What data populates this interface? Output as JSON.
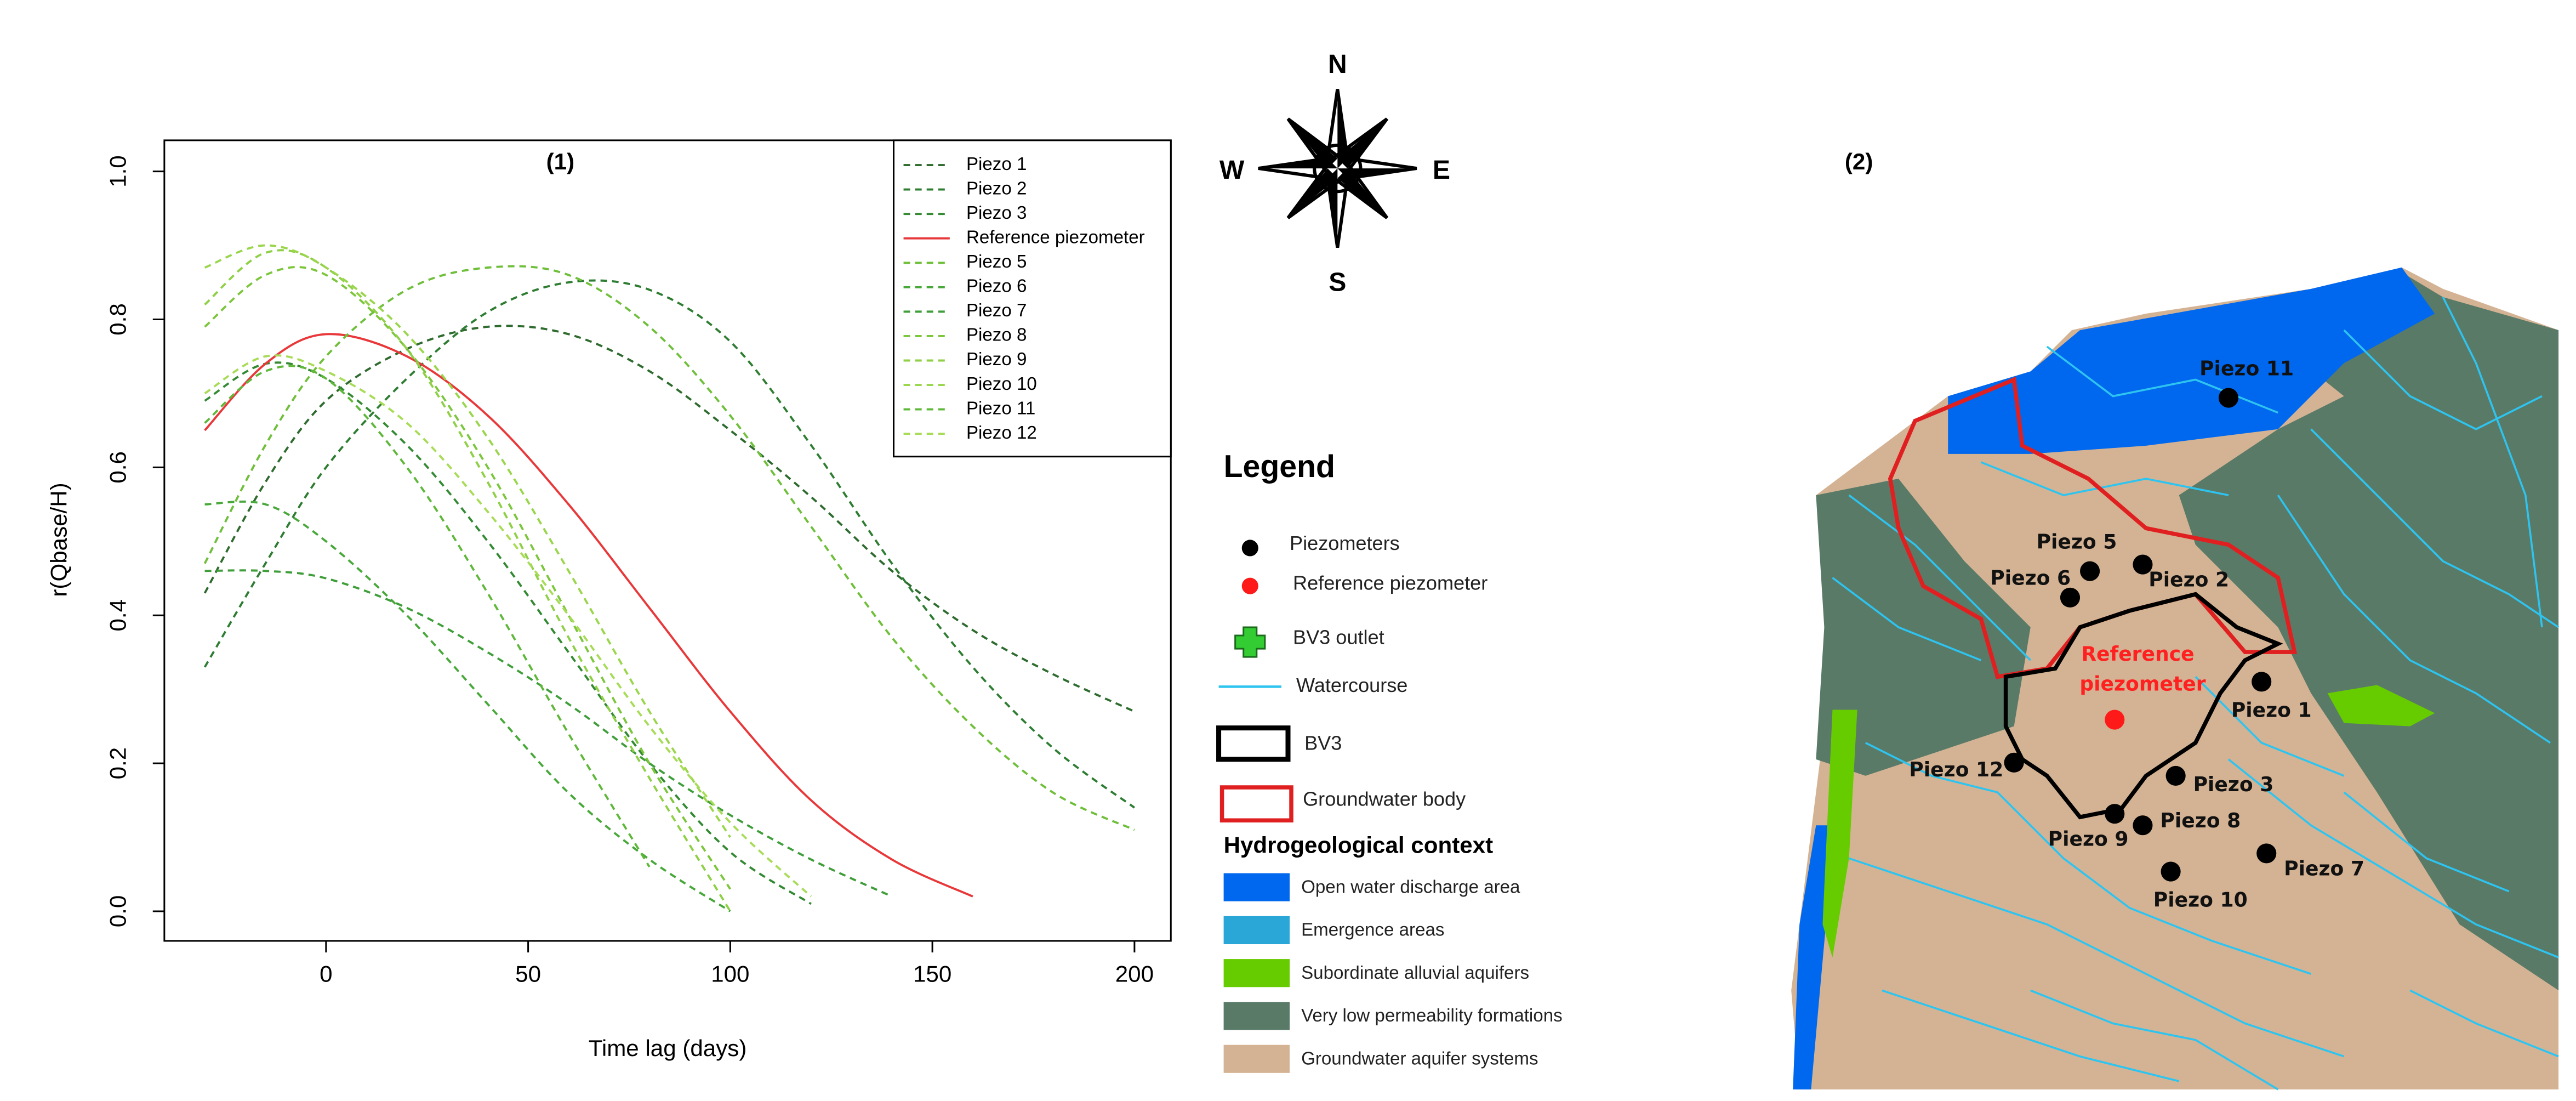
{
  "chart_data": {
    "type": "line",
    "panel_label": "(1)",
    "x_label": "Time lag (days)",
    "y_label": "r(Qbase/H)",
    "x": [
      -30,
      -15,
      0,
      20,
      40,
      60,
      80,
      100,
      120,
      140,
      160,
      180,
      200
    ],
    "xlim": [
      -40,
      209
    ],
    "ylim": [
      -0.04,
      1.042
    ],
    "xticks": [
      0,
      50,
      100,
      150,
      200
    ],
    "yticks": [
      {
        "value": 0,
        "label": "0.0"
      },
      0.2,
      0.4,
      0.6,
      0.8,
      {
        "value": 1,
        "label": "1.0"
      }
    ],
    "legend": "top-right",
    "series": [
      {
        "name": "Piezo 1",
        "color": "#2e6b2e",
        "style": "dashed",
        "values": [
          0.43,
          0.58,
          0.69,
          0.76,
          0.79,
          0.78,
          0.73,
          0.65,
          0.56,
          0.46,
          0.38,
          0.32,
          0.27
        ]
      },
      {
        "name": "Piezo 2",
        "color": "#2e7d32",
        "style": "dashed",
        "values": [
          0.33,
          0.47,
          0.6,
          0.72,
          0.81,
          0.85,
          0.84,
          0.77,
          0.63,
          0.47,
          0.33,
          0.22,
          0.14
        ]
      },
      {
        "name": "Piezo 3",
        "color": "#338a33",
        "style": "dashed",
        "values": [
          0.69,
          0.74,
          0.72,
          0.63,
          0.5,
          0.35,
          0.2,
          0.08,
          0.01,
          null,
          null,
          null,
          null
        ]
      },
      {
        "name": "Reference piezometer",
        "color": "#e8383a",
        "style": "solid",
        "values": [
          0.65,
          0.74,
          0.78,
          0.75,
          0.67,
          0.55,
          0.41,
          0.27,
          0.15,
          0.07,
          0.02,
          null,
          null
        ]
      },
      {
        "name": "Piezo 5",
        "color": "#6fbf3a",
        "style": "dashed",
        "values": [
          0.47,
          0.63,
          0.75,
          0.84,
          0.87,
          0.86,
          0.79,
          0.67,
          0.52,
          0.37,
          0.25,
          0.16,
          0.11
        ]
      },
      {
        "name": "Piezo 6",
        "color": "#48a83a",
        "style": "dashed",
        "values": [
          0.55,
          0.55,
          0.5,
          0.4,
          0.28,
          0.16,
          0.07,
          0.0,
          null,
          null,
          null,
          null,
          null
        ]
      },
      {
        "name": "Piezo 7",
        "color": "#3f9e3a",
        "style": "dashed",
        "values": [
          0.46,
          0.46,
          0.45,
          0.41,
          0.35,
          0.28,
          0.2,
          0.13,
          0.07,
          0.02,
          null,
          null,
          null
        ]
      },
      {
        "name": "Piezo 8",
        "color": "#7cc63c",
        "style": "dashed",
        "values": [
          0.79,
          0.86,
          0.86,
          0.76,
          0.6,
          0.4,
          0.2,
          0.03,
          null,
          null,
          null,
          null,
          null
        ]
      },
      {
        "name": "Piezo 9",
        "color": "#8fd046",
        "style": "dashed",
        "values": [
          0.82,
          0.89,
          0.87,
          0.76,
          0.58,
          0.37,
          0.18,
          0.0,
          null,
          null,
          null,
          null,
          null
        ]
      },
      {
        "name": "Piezo 10",
        "color": "#9ad64c",
        "style": "dashed",
        "values": [
          0.87,
          0.9,
          0.87,
          0.78,
          0.64,
          0.46,
          0.27,
          0.1,
          null,
          null,
          null,
          null,
          null
        ]
      },
      {
        "name": "Piezo 11",
        "color": "#5fb83a",
        "style": "dashed",
        "values": [
          0.66,
          0.73,
          0.72,
          0.6,
          0.43,
          0.24,
          0.06,
          null,
          null,
          null,
          null,
          null,
          null
        ]
      },
      {
        "name": "Piezo 12",
        "color": "#a8dc58",
        "style": "dashed",
        "values": [
          0.7,
          0.75,
          0.73,
          0.66,
          0.54,
          0.4,
          0.25,
          0.12,
          0.02,
          null,
          null,
          null,
          null
        ]
      }
    ]
  },
  "compass": {
    "north": "N",
    "south": "S",
    "west": "W",
    "east": "E"
  },
  "legend": {
    "title": "Legend",
    "items": [
      "Piezometers",
      "Reference piezometer",
      "BV3 outlet",
      "Watercourse",
      "BV3",
      "Groundwater body"
    ],
    "context_title": "Hydrogeological context",
    "context_items": [
      "Open water discharge area",
      "Emergence areas",
      "Subordinate alluvial aquifers",
      "Very low permeability formations",
      "Groundwater aquifer systems"
    ]
  },
  "map": {
    "panel_label": "(2)",
    "piezometers": [
      "Piezo 1",
      "Piezo 2",
      "Piezo 3",
      "Piezo 5",
      "Piezo 6",
      "Piezo 7",
      "Piezo 8",
      "Piezo 9",
      "Piezo 10",
      "Piezo 11",
      "Piezo 12"
    ],
    "reference_label": [
      "Reference",
      "piezometer"
    ]
  }
}
